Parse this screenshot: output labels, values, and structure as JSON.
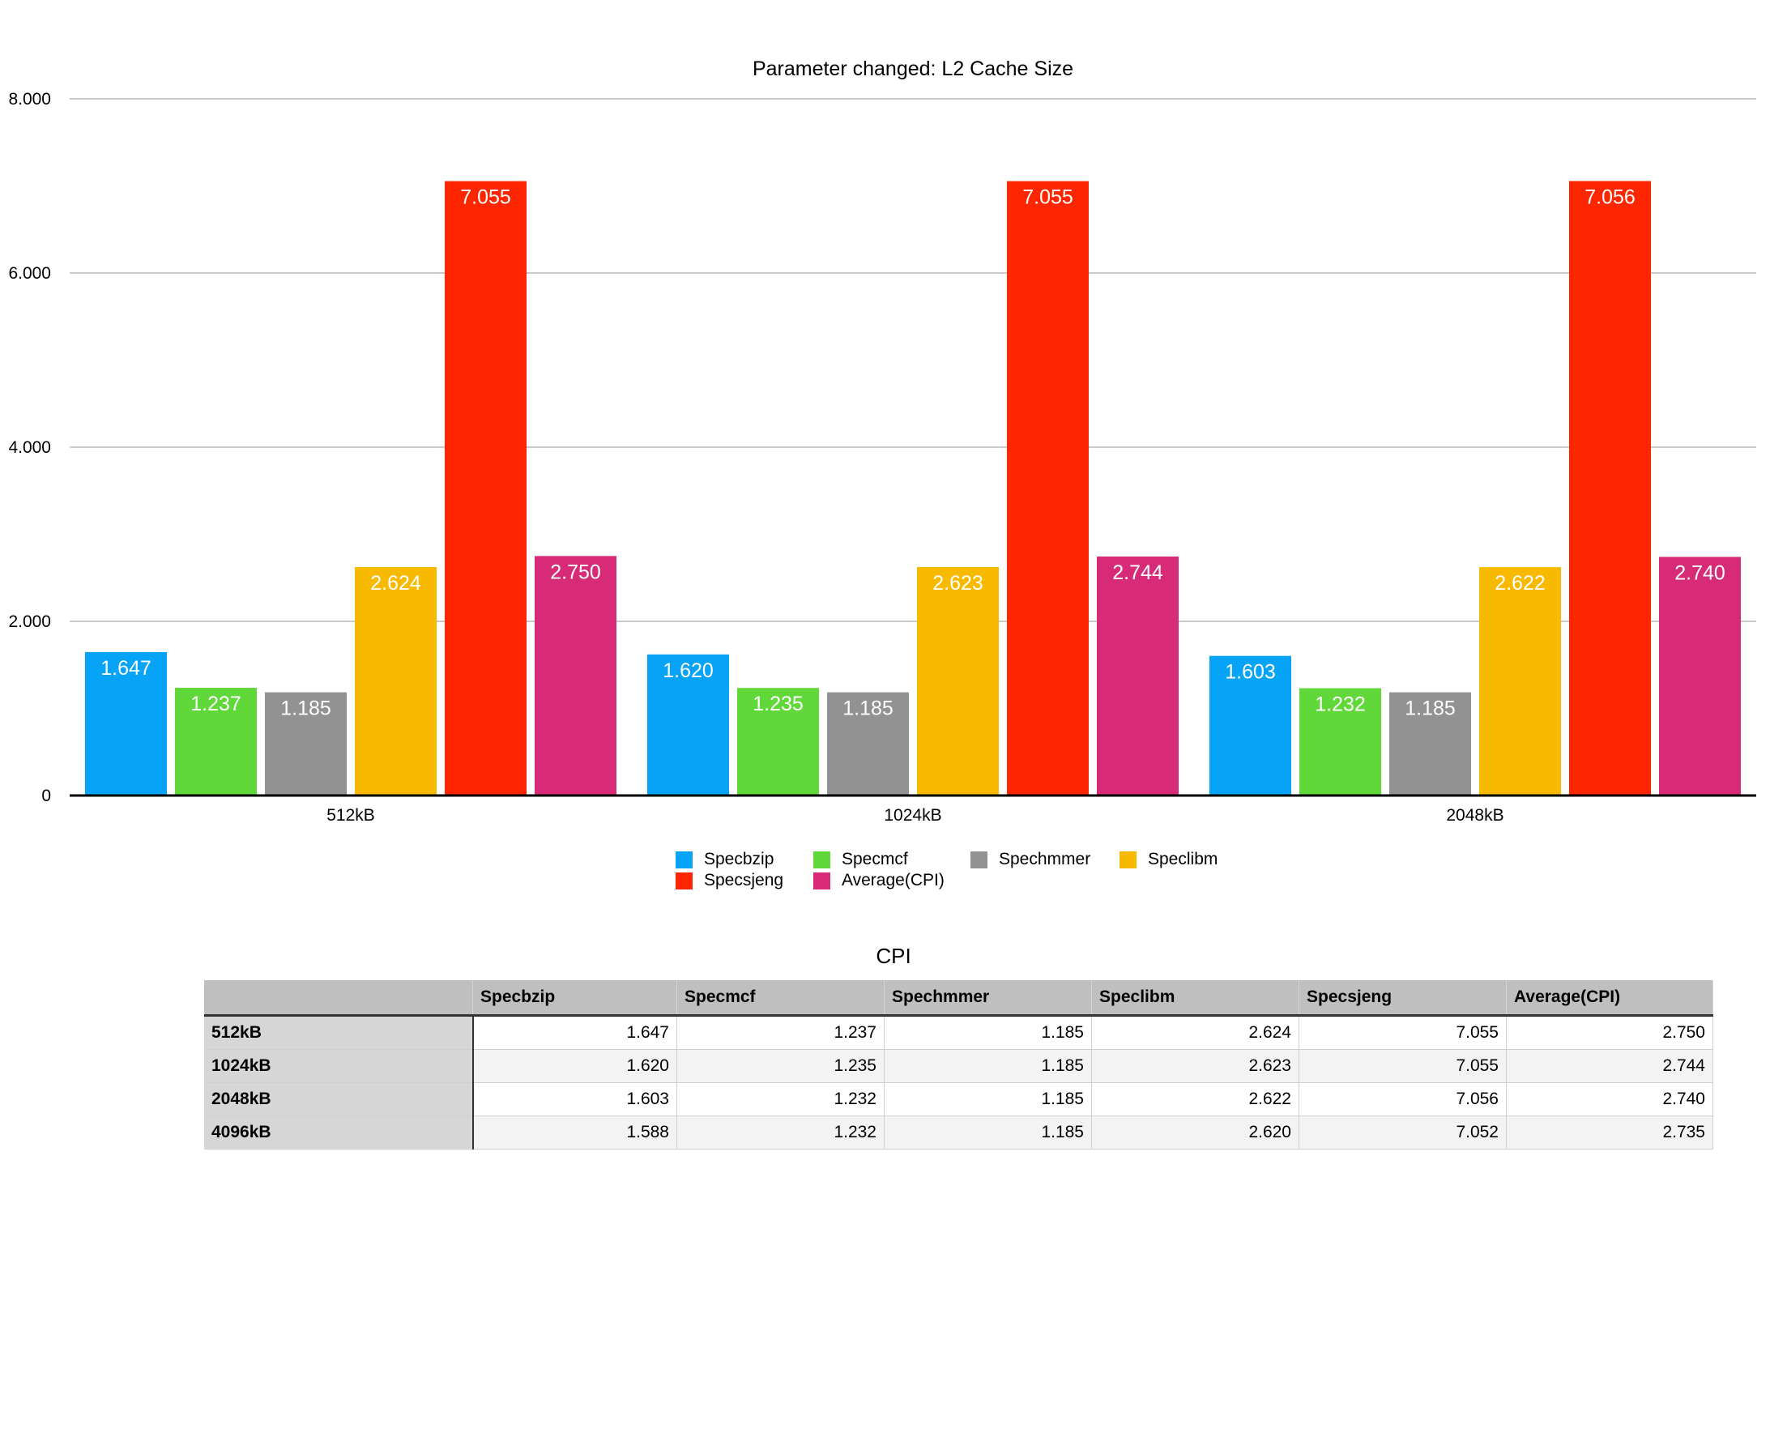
{
  "chart_data": {
    "type": "bar",
    "title": "Parameter changed: L2 Cache Size",
    "categories": [
      "512kB",
      "1024kB",
      "2048kB"
    ],
    "series": [
      {
        "name": "Specbzip",
        "color": "#06a3f7",
        "values": [
          1.647,
          1.62,
          1.603
        ]
      },
      {
        "name": "Specmcf",
        "color": "#61d83a",
        "values": [
          1.237,
          1.235,
          1.232
        ]
      },
      {
        "name": "Spechmmer",
        "color": "#929292",
        "values": [
          1.185,
          1.185,
          1.185
        ]
      },
      {
        "name": "Speclibm",
        "color": "#f8ba00",
        "values": [
          2.624,
          2.623,
          2.622
        ]
      },
      {
        "name": "Specsjeng",
        "color": "#fe2600",
        "values": [
          7.055,
          7.055,
          7.056
        ]
      },
      {
        "name": "Average(CPI)",
        "color": "#d82b77",
        "values": [
          2.75,
          2.744,
          2.74
        ]
      }
    ],
    "ylim": [
      0,
      8
    ],
    "yticks": [
      0,
      2,
      4,
      6,
      8
    ],
    "ytick_labels": [
      "0",
      "2.000",
      "4.000",
      "6.000",
      "8.000"
    ],
    "xlabel": "",
    "ylabel": "",
    "grid": true,
    "legend": "bottom-center"
  },
  "table": {
    "title": "CPI",
    "header": [
      "",
      "Specbzip",
      "Specmcf",
      "Spechmmer",
      "Speclibm",
      "Specsjeng",
      "Average(CPI)"
    ],
    "rows": [
      [
        "512kB",
        "1.647",
        "1.237",
        "1.185",
        "2.624",
        "7.055",
        "2.750"
      ],
      [
        "1024kB",
        "1.620",
        "1.235",
        "1.185",
        "2.623",
        "7.055",
        "2.744"
      ],
      [
        "2048kB",
        "1.603",
        "1.232",
        "1.185",
        "2.622",
        "7.056",
        "2.740"
      ],
      [
        "4096kB",
        "1.588",
        "1.232",
        "1.185",
        "2.620",
        "7.052",
        "2.735"
      ]
    ]
  }
}
